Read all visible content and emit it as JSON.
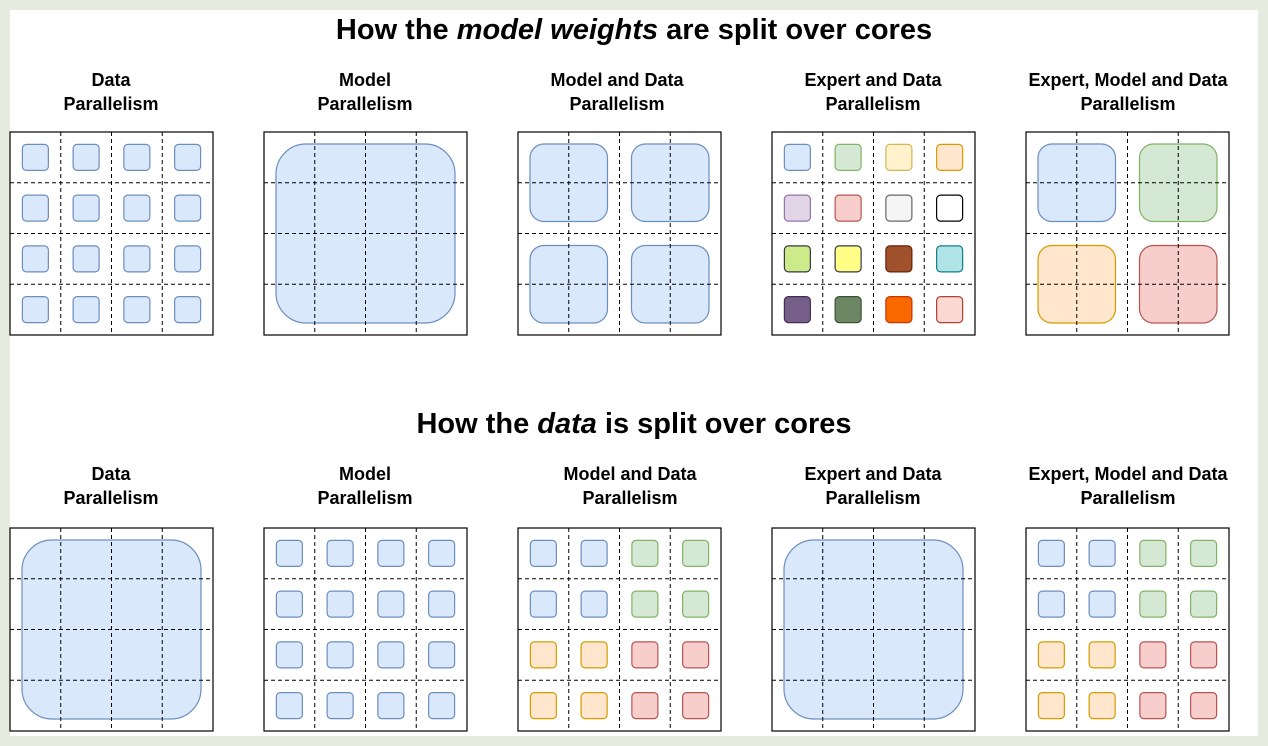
{
  "sections": [
    {
      "title": {
        "before": "How the",
        "emphasis": "model weights",
        "after": "are split over cores"
      },
      "panels": [
        {
          "label": [
            "Data",
            "Parallelism"
          ]
        },
        {
          "label": [
            "Model",
            "Parallelism"
          ]
        },
        {
          "label": [
            "Model and Data",
            "Parallelism"
          ]
        },
        {
          "label": [
            "Expert and Data",
            "Parallelism"
          ]
        },
        {
          "label": [
            "Expert, Model and Data",
            "Parallelism"
          ]
        }
      ]
    },
    {
      "title": {
        "before": "How the",
        "emphasis": "data",
        "after": "is split over cores"
      },
      "panels": [
        {
          "label": [
            "Data",
            "Parallelism"
          ]
        },
        {
          "label": [
            "Model",
            "Parallelism"
          ]
        },
        {
          "label": [
            "Model and Data",
            "Parallelism"
          ]
        },
        {
          "label": [
            "Expert and Data",
            "Parallelism"
          ]
        },
        {
          "label": [
            "Expert, Model and Data",
            "Parallelism"
          ]
        }
      ]
    }
  ]
}
